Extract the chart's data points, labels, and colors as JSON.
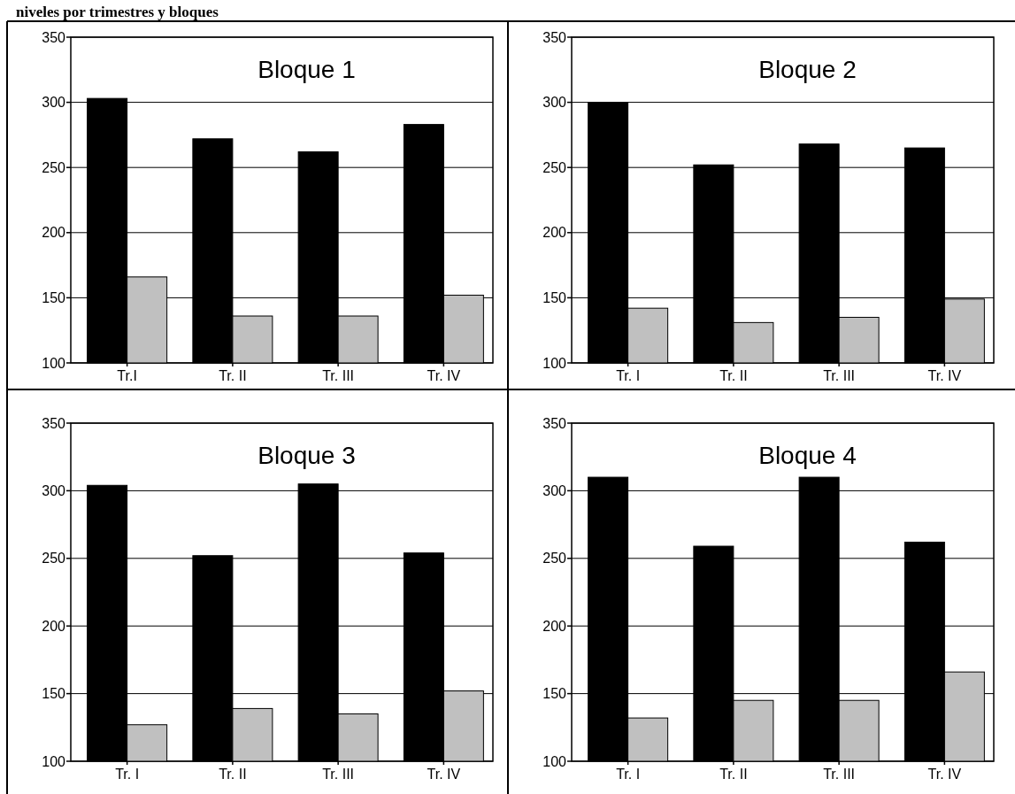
{
  "chart_data": [
    {
      "type": "bar",
      "title": "Bloque 1",
      "annotations": [
        "niveles por trimestres y bloques"
      ],
      "categories": [
        "Tr.I",
        "Tr. II",
        "Tr. III",
        "Tr. IV"
      ],
      "series": [
        {
          "color": "#000000",
          "values": [
            303,
            272,
            262,
            283
          ]
        },
        {
          "color": "#c0c0c0",
          "values": [
            166,
            136,
            136,
            152
          ]
        }
      ],
      "ylim": [
        100,
        350
      ],
      "yticks": [
        100,
        150,
        200,
        250,
        300,
        350
      ],
      "grid": "y"
    },
    {
      "type": "bar",
      "title": "Bloque 2",
      "categories": [
        "Tr. I",
        "Tr. II",
        "Tr. III",
        "Tr. IV"
      ],
      "series": [
        {
          "color": "#000000",
          "values": [
            300,
            252,
            268,
            265
          ]
        },
        {
          "color": "#c0c0c0",
          "values": [
            142,
            131,
            135,
            149
          ]
        }
      ],
      "ylim": [
        100,
        350
      ],
      "yticks": [
        100,
        150,
        200,
        250,
        300,
        350
      ],
      "grid": "y"
    },
    {
      "type": "bar",
      "title": "Bloque 3",
      "categories": [
        "Tr. I",
        "Tr. II",
        "Tr. III",
        "Tr. IV"
      ],
      "series": [
        {
          "color": "#000000",
          "values": [
            304,
            252,
            305,
            254
          ]
        },
        {
          "color": "#c0c0c0",
          "values": [
            127,
            139,
            135,
            152
          ]
        }
      ],
      "ylim": [
        100,
        350
      ],
      "yticks": [
        100,
        150,
        200,
        250,
        300,
        350
      ],
      "grid": "y"
    },
    {
      "type": "bar",
      "title": "Bloque 4",
      "categories": [
        "Tr. I",
        "Tr. II",
        "Tr. III",
        "Tr. IV"
      ],
      "series": [
        {
          "color": "#000000",
          "values": [
            310,
            259,
            310,
            262
          ]
        },
        {
          "color": "#c0c0c0",
          "values": [
            132,
            145,
            145,
            166
          ]
        }
      ],
      "ylim": [
        100,
        350
      ],
      "yticks": [
        100,
        150,
        200,
        250,
        300,
        350
      ],
      "grid": "y"
    }
  ]
}
